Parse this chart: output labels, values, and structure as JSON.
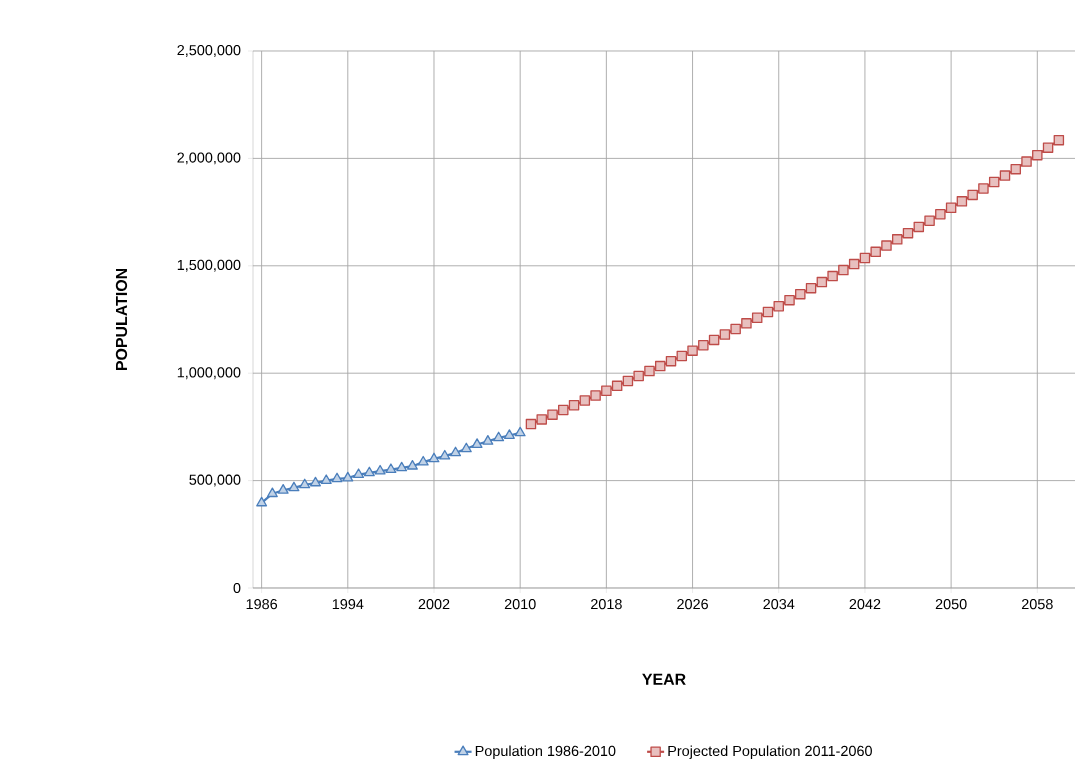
{
  "chart_data": {
    "type": "line",
    "xlabel": "YEAR",
    "ylabel": "POPULATION",
    "xlim": [
      1985.2,
      2061.5
    ],
    "xticks": [
      1986,
      1994,
      2002,
      2010,
      2018,
      2026,
      2034,
      2042,
      2050,
      2058
    ],
    "ylim": [
      0,
      2500000
    ],
    "yticks": [
      0,
      {
        "value": 500000,
        "label": "500,000"
      },
      {
        "value": 1000000,
        "label": "1,000,000"
      },
      {
        "value": 1500000,
        "label": "1,500,000"
      },
      {
        "value": 2000000,
        "label": "2,000,000"
      },
      {
        "value": 2500000,
        "label": "2,500,000"
      }
    ],
    "grid": true,
    "legend": "bottom",
    "line_style": "solid",
    "series": [
      {
        "name": "Population 1986-2010",
        "color": "#4a7ebb",
        "marker": "triangle",
        "x": [
          1986,
          1987,
          1988,
          1989,
          1990,
          1991,
          1992,
          1993,
          1994,
          1995,
          1996,
          1997,
          1998,
          1999,
          2000,
          2001,
          2002,
          2003,
          2004,
          2005,
          2006,
          2007,
          2008,
          2009,
          2010
        ],
        "values": [
          396000,
          439000,
          455000,
          466000,
          480000,
          489000,
          500000,
          508000,
          512000,
          528000,
          536000,
          544000,
          551000,
          559000,
          567000,
          586000,
          601000,
          614000,
          629000,
          648000,
          668000,
          683000,
          699000,
          710000,
          722000
        ]
      },
      {
        "name": "Projected Population 2011-2060",
        "color": "#be4b48",
        "marker": "square",
        "x": [
          2011,
          2012,
          2013,
          2014,
          2015,
          2016,
          2017,
          2018,
          2019,
          2020,
          2021,
          2022,
          2023,
          2024,
          2025,
          2026,
          2027,
          2028,
          2029,
          2030,
          2031,
          2032,
          2033,
          2034,
          2035,
          2036,
          2037,
          2038,
          2039,
          2040,
          2041,
          2042,
          2043,
          2044,
          2045,
          2046,
          2047,
          2048,
          2049,
          2050,
          2051,
          2052,
          2053,
          2054,
          2055,
          2056,
          2057,
          2058,
          2059,
          2060
        ],
        "values": [
          763000,
          785000,
          807000,
          829000,
          851000,
          873000,
          896000,
          918000,
          941000,
          964000,
          987000,
          1010000,
          1033000,
          1056000,
          1080000,
          1105000,
          1130000,
          1155000,
          1180000,
          1206000,
          1232000,
          1258000,
          1285000,
          1312000,
          1340000,
          1368000,
          1396000,
          1424000,
          1452000,
          1480000,
          1508000,
          1536000,
          1565000,
          1594000,
          1623000,
          1652000,
          1681000,
          1710000,
          1740000,
          1770000,
          1800000,
          1830000,
          1860000,
          1890000,
          1920000,
          1950000,
          1985000,
          2015000,
          2050000,
          2085000
        ]
      }
    ]
  }
}
